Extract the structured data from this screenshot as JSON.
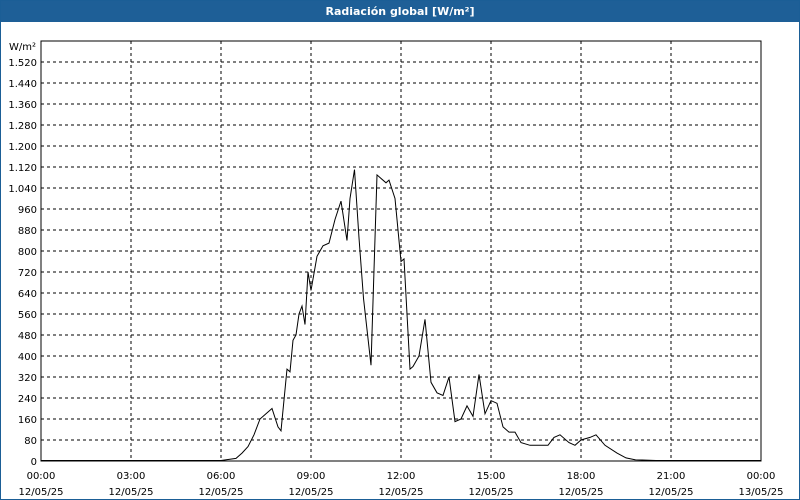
{
  "window": {
    "title": "Radiación global [W/m²]"
  },
  "colors": {
    "titlebar": "#1e5f97",
    "line": "#000000",
    "grid": "#000000",
    "background": "#ffffff"
  },
  "chart_data": {
    "type": "line",
    "title": "Radiación global [W/m²]",
    "ylabel": "W/m²",
    "xlabel": "",
    "ylim": [
      0,
      1600
    ],
    "xlim_hours": [
      0,
      24
    ],
    "grid": true,
    "grid_style": "dashed",
    "yticks": [
      {
        "value": 0,
        "label": "0"
      },
      {
        "value": 80,
        "label": "80"
      },
      {
        "value": 160,
        "label": "160"
      },
      {
        "value": 240,
        "label": "240"
      },
      {
        "value": 320,
        "label": "320"
      },
      {
        "value": 400,
        "label": "400"
      },
      {
        "value": 480,
        "label": "480"
      },
      {
        "value": 560,
        "label": "560"
      },
      {
        "value": 640,
        "label": "640"
      },
      {
        "value": 720,
        "label": "720"
      },
      {
        "value": 800,
        "label": "800"
      },
      {
        "value": 880,
        "label": "880"
      },
      {
        "value": 960,
        "label": "960"
      },
      {
        "value": 1040,
        "label": "1.040"
      },
      {
        "value": 1120,
        "label": "1.120"
      },
      {
        "value": 1200,
        "label": "1.200"
      },
      {
        "value": 1280,
        "label": "1.280"
      },
      {
        "value": 1360,
        "label": "1.360"
      },
      {
        "value": 1440,
        "label": "1.440"
      },
      {
        "value": 1520,
        "label": "1.520"
      }
    ],
    "xticks": [
      {
        "hour": 0,
        "time": "00:00",
        "date": "12/05/25"
      },
      {
        "hour": 3,
        "time": "03:00",
        "date": "12/05/25"
      },
      {
        "hour": 6,
        "time": "06:00",
        "date": "12/05/25"
      },
      {
        "hour": 9,
        "time": "09:00",
        "date": "12/05/25"
      },
      {
        "hour": 12,
        "time": "12:00",
        "date": "12/05/25"
      },
      {
        "hour": 15,
        "time": "15:00",
        "date": "12/05/25"
      },
      {
        "hour": 18,
        "time": "18:00",
        "date": "12/05/25"
      },
      {
        "hour": 21,
        "time": "21:00",
        "date": "12/05/25"
      },
      {
        "hour": 24,
        "time": "00:00",
        "date": "13/05/25"
      }
    ],
    "series": [
      {
        "x": [
          0,
          6.0,
          6.5,
          6.7,
          6.9,
          7.1,
          7.3,
          7.5,
          7.7,
          7.9,
          8.0,
          8.2,
          8.3,
          8.4,
          8.5,
          8.6,
          8.7,
          8.8,
          8.9,
          9.0,
          9.2,
          9.4,
          9.6,
          9.8,
          10.0,
          10.2,
          10.3,
          10.45,
          10.6,
          10.75,
          11.0,
          11.2,
          11.5,
          11.6,
          11.8,
          12.0,
          12.1,
          12.3,
          12.4,
          12.6,
          12.8,
          13.0,
          13.2,
          13.4,
          13.6,
          13.8,
          14.0,
          14.2,
          14.4,
          14.6,
          14.8,
          15.0,
          15.2,
          15.4,
          15.6,
          15.8,
          16.0,
          16.3,
          16.6,
          16.9,
          17.1,
          17.3,
          17.6,
          17.8,
          18.0,
          18.3,
          18.5,
          18.8,
          19.2,
          19.5,
          19.8,
          20.5,
          24.0
        ],
        "y": [
          2,
          2,
          10,
          30,
          55,
          100,
          160,
          180,
          200,
          130,
          115,
          350,
          340,
          460,
          480,
          560,
          590,
          520,
          720,
          650,
          780,
          820,
          830,
          920,
          990,
          840,
          1000,
          1110,
          850,
          620,
          365,
          1090,
          1060,
          1070,
          1000,
          760,
          770,
          350,
          360,
          400,
          540,
          300,
          260,
          250,
          320,
          150,
          160,
          210,
          170,
          330,
          180,
          230,
          220,
          130,
          110,
          110,
          70,
          60,
          60,
          60,
          90,
          100,
          70,
          60,
          80,
          90,
          100,
          60,
          30,
          12,
          5,
          2,
          2
        ]
      }
    ]
  }
}
